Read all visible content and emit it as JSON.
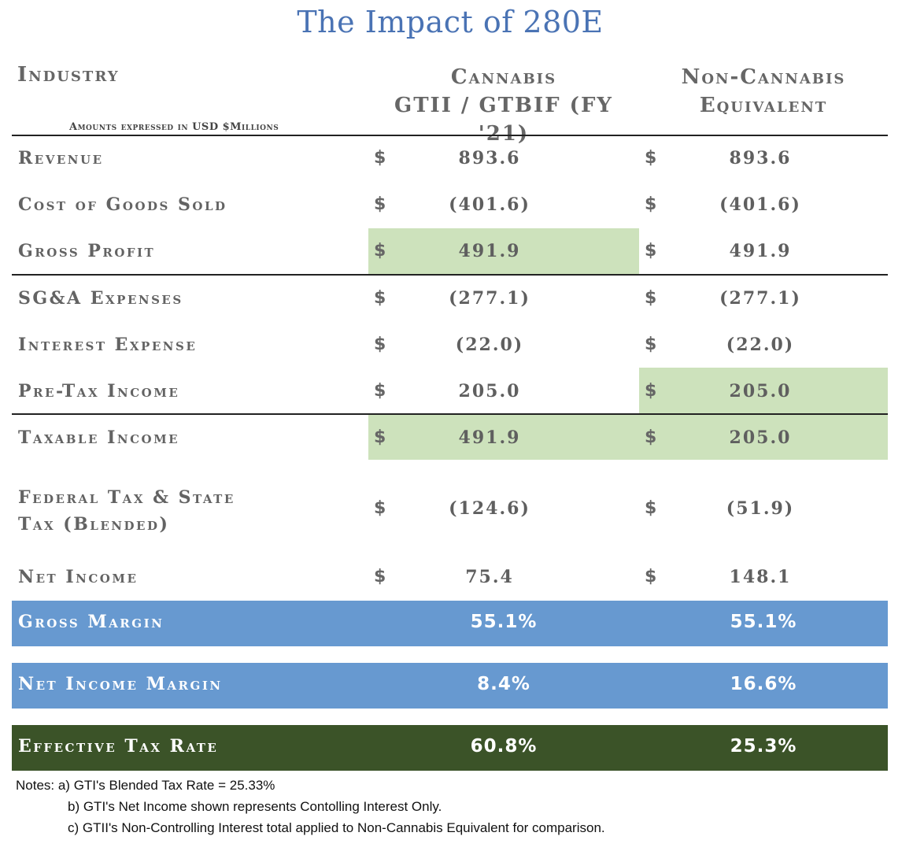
{
  "title": "The Impact of 280E",
  "header": {
    "industry": "Industry",
    "cannabis_line1": "Cannabis",
    "cannabis_line2": "GTII / GTBIF (FY '21)",
    "noncannabis_line1": "Non-Cannabis",
    "noncannabis_line2": "Equivalent",
    "amounts_note": "Amounts expressed in USD $Millions"
  },
  "currency_symbol": "$",
  "rows": [
    {
      "label": "Revenue",
      "cannabis": "893.6",
      "non_cannabis": "893.6"
    },
    {
      "label": "Cost of Goods Sold",
      "cannabis": "(401.6)",
      "non_cannabis": "(401.6)"
    },
    {
      "label": "Gross Profit",
      "cannabis": "491.9",
      "non_cannabis": "491.9"
    },
    {
      "label": "SG&A Expenses",
      "cannabis": "(277.1)",
      "non_cannabis": "(277.1)"
    },
    {
      "label": "Interest Expense",
      "cannabis": "(22.0)",
      "non_cannabis": "(22.0)"
    },
    {
      "label": "Pre-Tax Income",
      "cannabis": "205.0",
      "non_cannabis": "205.0"
    },
    {
      "label": "Taxable Income",
      "cannabis": "491.9",
      "non_cannabis": "205.0"
    },
    {
      "label_line1": "Federal Tax & State",
      "label_line2": "Tax (Blended)",
      "cannabis": "(124.6)",
      "non_cannabis": "(51.9)"
    },
    {
      "label": "Net Income",
      "cannabis": "75.4",
      "non_cannabis": "148.1"
    }
  ],
  "summary": [
    {
      "label": "Gross Margin",
      "cannabis": "55.1%",
      "non_cannabis": "55.1%"
    },
    {
      "label": "Net Income Margin",
      "cannabis": "8.4%",
      "non_cannabis": "16.6%"
    },
    {
      "label": "Effective Tax Rate",
      "cannabis": "60.8%",
      "non_cannabis": "25.3%"
    }
  ],
  "notes": {
    "a": "Notes: a) GTI's Blended Tax Rate = 25.33%",
    "b": "b) GTI's Net Income shown represents Contolling Interest Only.",
    "c": "c) GTII's Non-Controlling Interest total applied to Non-Cannabis Equivalent for comparison."
  },
  "colors": {
    "title": "#4a73b4",
    "highlight_green": "#cde2bc",
    "band_blue": "#6799d0",
    "band_dark_green": "#3b5328"
  }
}
